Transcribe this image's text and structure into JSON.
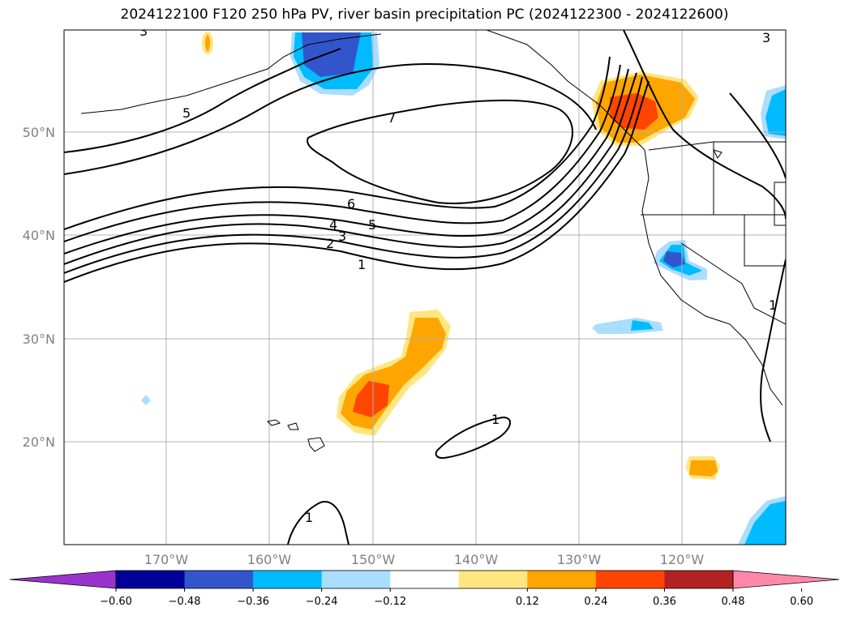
{
  "title": "2024122100 F120 250 hPa PV, river basin precipitation PC (2024122300 - 2024122600)",
  "lat_labels": [
    "50°N",
    "40°N",
    "30°N",
    "20°N"
  ],
  "lon_labels": [
    "170°W",
    "160°W",
    "150°W",
    "140°W",
    "130°W",
    "120°W"
  ],
  "contour_labels": [
    "3",
    "5",
    "7",
    "6",
    "5",
    "4",
    "3",
    "2",
    "1",
    "1",
    "1",
    "3",
    "1"
  ],
  "colorbar": {
    "ticks": [
      "−0.60",
      "−0.48",
      "−0.36",
      "−0.24",
      "−0.12",
      "0.12",
      "0.24",
      "0.36",
      "0.48",
      "0.60"
    ],
    "colors": [
      "#9933cc",
      "#000099",
      "#3355cc",
      "#00bbff",
      "#aaddff",
      "#ffffff",
      "#ffe680",
      "#ffa500",
      "#ff4500",
      "#b22222",
      "#ff88aa"
    ]
  }
}
